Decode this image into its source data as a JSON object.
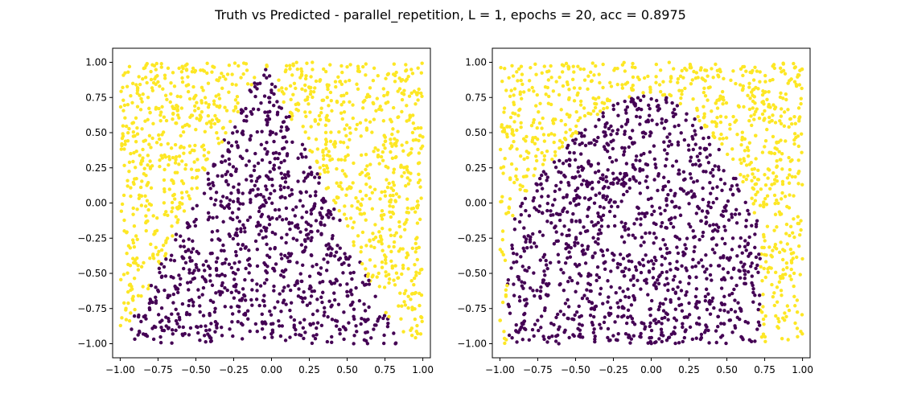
{
  "figure": {
    "title": "Truth vs Predicted - parallel_repetition, L = 1, epochs = 20, acc = 0.8975"
  },
  "colors": {
    "class_0": "#440154",
    "class_1": "#fde725",
    "background": "#ffffff",
    "axes": "#000000"
  },
  "chart_data": [
    {
      "type": "scatter",
      "panel": "left",
      "title": "",
      "xlabel": "",
      "ylabel": "",
      "xlim": [
        -1.05,
        1.05
      ],
      "ylim": [
        -1.1,
        1.1
      ],
      "xticks": [
        -1.0,
        -0.75,
        -0.5,
        -0.25,
        0.0,
        0.25,
        0.5,
        0.75,
        1.0
      ],
      "xtick_labels": [
        "−1.00",
        "−0.75",
        "−0.50",
        "−0.25",
        "0.00",
        "0.25",
        "0.50",
        "0.75",
        "1.00"
      ],
      "yticks": [
        -1.0,
        -0.75,
        -0.5,
        -0.25,
        0.0,
        0.25,
        0.5,
        0.75,
        1.0
      ],
      "ytick_labels": [
        "−1.00",
        "−0.75",
        "−0.50",
        "−0.25",
        "0.00",
        "0.25",
        "0.50",
        "0.75",
        "1.00"
      ],
      "grid": false,
      "series": [
        {
          "class": 0,
          "color": "#440154",
          "region": "triangle apex near (-0.05, 1.0), base from (-1.0, -1.0) to (0.85, -1.0)",
          "boundary_points": [
            [
              -0.05,
              1.0
            ],
            [
              -1.0,
              -1.0
            ],
            [
              0.85,
              -1.0
            ]
          ],
          "approx_count": 900
        },
        {
          "class": 1,
          "color": "#fde725",
          "region": "outside triangle",
          "approx_count": 1100
        }
      ]
    },
    {
      "type": "scatter",
      "panel": "right",
      "title": "",
      "xlabel": "",
      "ylabel": "",
      "xlim": [
        -1.05,
        1.05
      ],
      "ylim": [
        -1.1,
        1.1
      ],
      "xticks": [
        -1.0,
        -0.75,
        -0.5,
        -0.25,
        0.0,
        0.25,
        0.5,
        0.75,
        1.0
      ],
      "xtick_labels": [
        "−1.00",
        "−0.75",
        "−0.50",
        "−0.25",
        "0.00",
        "0.25",
        "0.50",
        "0.75",
        "1.00"
      ],
      "yticks": [
        -1.0,
        -0.75,
        -0.5,
        -0.25,
        0.0,
        0.25,
        0.5,
        0.75,
        1.0
      ],
      "ytick_labels": [
        "−1.00",
        "−0.75",
        "−0.50",
        "−0.25",
        "0.00",
        "0.25",
        "0.50",
        "0.75",
        "1.00"
      ],
      "grid": false,
      "series": [
        {
          "class": 0,
          "color": "#440154",
          "region": "rounded dome, apex near (0.0, 0.78), base from (-0.95, -1.0) to (0.72, -1.0)",
          "approx_count": 900
        },
        {
          "class": 1,
          "color": "#fde725",
          "region": "outside dome",
          "approx_count": 1100
        }
      ]
    }
  ]
}
